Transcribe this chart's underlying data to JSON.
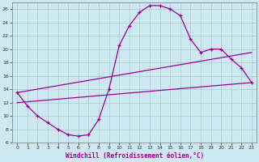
{
  "xlabel": "Windchill (Refroidissement éolien,°C)",
  "bg_color": "#cde8f0",
  "line_color": "#990099",
  "grid_color": "#aacccc",
  "xlim": [
    -0.5,
    23.5
  ],
  "ylim": [
    6,
    27
  ],
  "xticks": [
    0,
    1,
    2,
    3,
    4,
    5,
    6,
    7,
    8,
    9,
    10,
    11,
    12,
    13,
    14,
    15,
    16,
    17,
    18,
    19,
    20,
    21,
    22,
    23
  ],
  "yticks": [
    6,
    8,
    10,
    12,
    14,
    16,
    18,
    20,
    22,
    24,
    26
  ],
  "curve1_x": [
    0,
    1,
    2,
    3,
    4,
    5,
    6,
    7,
    8,
    9,
    10,
    11,
    12,
    13,
    14,
    15,
    16,
    17,
    18,
    19,
    20,
    21,
    22,
    23
  ],
  "curve1_y": [
    13.5,
    11.5,
    10.0,
    9.0,
    8.0,
    7.2,
    7.0,
    7.2,
    9.5,
    14.0,
    20.5,
    23.5,
    25.5,
    26.5,
    26.5,
    26.0,
    25.0,
    21.5,
    19.5,
    20.0,
    20.0,
    18.5,
    17.2,
    15.0
  ],
  "curve2_x": [
    0,
    23
  ],
  "curve2_y": [
    12.0,
    15.0
  ],
  "curve3_x": [
    0,
    23
  ],
  "curve3_y": [
    13.5,
    19.5
  ]
}
